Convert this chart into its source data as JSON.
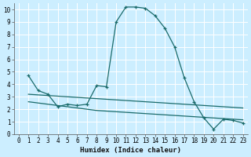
{
  "xlabel": "Humidex (Indice chaleur)",
  "bg_color": "#cceeff",
  "grid_color": "#ffffff",
  "line_color": "#1a6b6b",
  "xlim": [
    -0.5,
    23.5
  ],
  "ylim": [
    0,
    10.5
  ],
  "xticks": [
    0,
    1,
    2,
    3,
    4,
    5,
    6,
    7,
    8,
    9,
    10,
    11,
    12,
    13,
    14,
    15,
    16,
    17,
    18,
    19,
    20,
    21,
    22,
    23
  ],
  "yticks": [
    0,
    1,
    2,
    3,
    4,
    5,
    6,
    7,
    8,
    9,
    10
  ],
  "line1_x": [
    1,
    2,
    3,
    4,
    5,
    6,
    7,
    8,
    9,
    10,
    11,
    12,
    13,
    14,
    15,
    16,
    17,
    18,
    19,
    20,
    21,
    22,
    23
  ],
  "line1_y": [
    4.7,
    3.5,
    3.2,
    2.2,
    2.4,
    2.3,
    2.4,
    3.9,
    3.8,
    9.0,
    10.2,
    10.2,
    10.1,
    9.5,
    8.5,
    7.0,
    4.5,
    2.6,
    1.3,
    0.4,
    1.2,
    1.1,
    0.9
  ],
  "line2_x": [
    1,
    2,
    3,
    4,
    5,
    6,
    7,
    8,
    9,
    10,
    11,
    12,
    13,
    14,
    15,
    16,
    17,
    18,
    19,
    20,
    21,
    22,
    23
  ],
  "line2_y": [
    3.2,
    3.15,
    3.1,
    3.05,
    3.0,
    2.95,
    2.9,
    2.85,
    2.8,
    2.75,
    2.7,
    2.65,
    2.6,
    2.55,
    2.5,
    2.45,
    2.4,
    2.35,
    2.3,
    2.25,
    2.2,
    2.15,
    2.1
  ],
  "line3_x": [
    1,
    2,
    3,
    4,
    5,
    6,
    7,
    8,
    9,
    10,
    11,
    12,
    13,
    14,
    15,
    16,
    17,
    18,
    19,
    20,
    21,
    22,
    23
  ],
  "line3_y": [
    2.6,
    2.5,
    2.4,
    2.3,
    2.2,
    2.1,
    2.0,
    1.9,
    1.85,
    1.8,
    1.75,
    1.7,
    1.65,
    1.6,
    1.55,
    1.5,
    1.45,
    1.4,
    1.35,
    1.3,
    1.25,
    1.2,
    1.15
  ]
}
